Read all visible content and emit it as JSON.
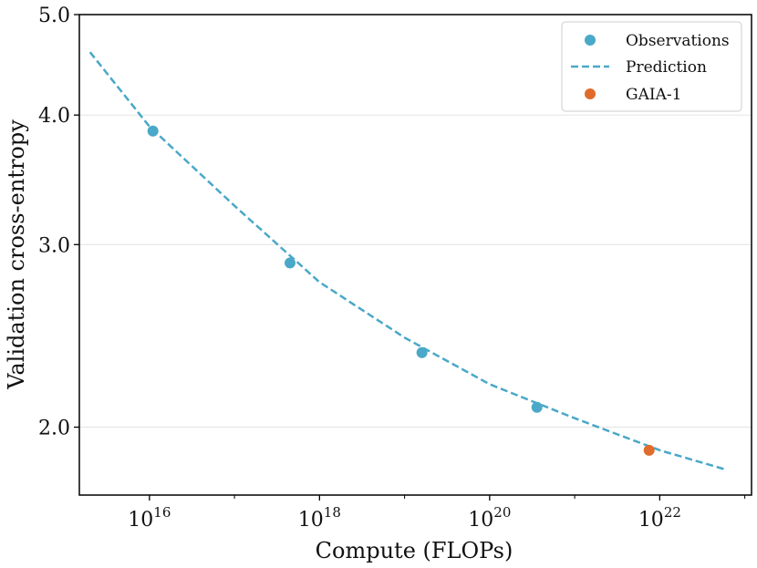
{
  "chart_data": {
    "type": "scatter",
    "title": "",
    "xlabel": "Compute (FLOPs)",
    "ylabel": "Validation cross-entropy",
    "xscale": "log",
    "yscale": "log",
    "xlim": [
      1500000000000000.0,
      1.2e+23
    ],
    "ylim": [
      1.72,
      5.0
    ],
    "grid": "horizontal",
    "legend_position": "top-right",
    "colors": {
      "observations": "#4aa8c8",
      "prediction": "#4aa8c8",
      "gaia": "#e06c2c",
      "grid": "#e6e6e6",
      "axis": "#000000"
    },
    "x_ticks": [
      {
        "value": 1e+16,
        "base": "10",
        "exp": "16"
      },
      {
        "value": 1e+18,
        "base": "10",
        "exp": "18"
      },
      {
        "value": 1e+20,
        "base": "10",
        "exp": "20"
      },
      {
        "value": 1e+22,
        "base": "10",
        "exp": "22"
      }
    ],
    "y_ticks": [
      {
        "value": 2.0,
        "label": "2.0"
      },
      {
        "value": 3.0,
        "label": "3.0"
      },
      {
        "value": 4.0,
        "label": "4.0"
      },
      {
        "value": 5.0,
        "label": "5.0"
      }
    ],
    "series": [
      {
        "name": "Observations",
        "kind": "scatter",
        "x": [
          1.1e+16,
          4.5e+17,
          1.6e+19,
          3.6e+20
        ],
        "y": [
          3.86,
          2.88,
          2.36,
          2.09
        ]
      },
      {
        "name": "Prediction",
        "kind": "line",
        "style": "dashed",
        "x": [
          2000000000000000.0,
          1e+16,
          1e+17,
          1e+18,
          1e+19,
          1e+20,
          1e+21,
          1e+22,
          6e+22
        ],
        "y": [
          4.6,
          3.9,
          3.27,
          2.76,
          2.44,
          2.2,
          2.04,
          1.9,
          1.82
        ]
      },
      {
        "name": "GAIA-1",
        "kind": "scatter",
        "x": [
          7.5e+21
        ],
        "y": [
          1.9
        ]
      }
    ]
  }
}
